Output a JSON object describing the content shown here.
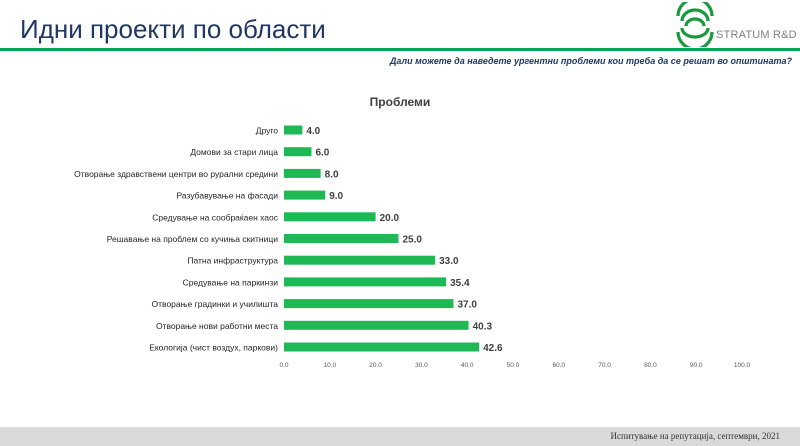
{
  "header": {
    "title": "Идни проекти по области",
    "logo_text": "STRATUM R&D"
  },
  "question": "Дали можете да наведете ургентни проблеми кои треба да се решат во општината?",
  "footer": {
    "note": "Испитување на репутација, септември, 2021"
  },
  "colors": {
    "bar": "#1db954",
    "title": "#1f3864",
    "accent_rule": "#00a651",
    "logo": "#1a9a3e"
  },
  "chart_data": {
    "type": "bar",
    "orientation": "horizontal",
    "title": "Проблеми",
    "categories": [
      "Друго",
      "Домови за стари лица",
      "Отворање здравствени центри во рурални средини",
      "Разубавување на фасади",
      "Средување на сообраќаен хаос",
      "Решавање на проблем со кучиња скитници",
      "Патна инфраструктура",
      "Средување на паркинзи",
      "Отворање градинки и училишта",
      "Отворање нови работни места",
      "Екологија (чист воздух, паркови)"
    ],
    "values": [
      4.0,
      6.0,
      8.0,
      9.0,
      20.0,
      25.0,
      33.0,
      35.4,
      37.0,
      40.3,
      42.6
    ],
    "value_labels": [
      "4.0",
      "6.0",
      "8.0",
      "9.0",
      "20.0",
      "25.0",
      "33.0",
      "35.4",
      "37.0",
      "40.3",
      "42.6"
    ],
    "xlim": [
      0,
      100
    ],
    "x_ticks": [
      0,
      10,
      20,
      30,
      40,
      50,
      60,
      70,
      80,
      90,
      100
    ],
    "x_tick_labels": [
      "0.0",
      "10.0",
      "20.0",
      "30.0",
      "40.0",
      "50.0",
      "60.0",
      "70.0",
      "80.0",
      "90.0",
      "100.0"
    ],
    "grid": false,
    "legend": "none"
  }
}
